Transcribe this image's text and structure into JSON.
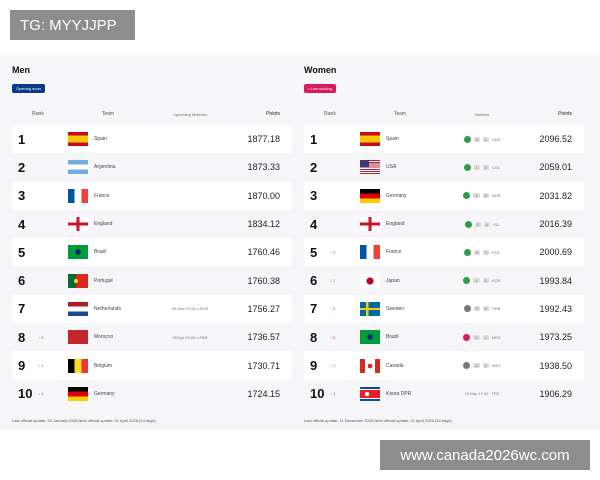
{
  "watermarks": {
    "top_left": "TG: MYYJJPP",
    "bottom_right": "www.canada2026wc.com"
  },
  "men": {
    "title": "Men",
    "badge": "Opening soon",
    "badge_color": "#0b3a8c",
    "headers": [
      "Rank",
      "Team",
      "Upcoming Matches",
      "Points"
    ],
    "rows": [
      {
        "rank": "1",
        "move": "",
        "team": "Spain",
        "flag": "es",
        "match": "",
        "points": "1877.18"
      },
      {
        "rank": "2",
        "move": "",
        "team": "Argentina",
        "flag": "ar",
        "match": "",
        "points": "1873.33"
      },
      {
        "rank": "3",
        "move": "",
        "team": "France",
        "flag": "fr",
        "match": "",
        "points": "1870.00"
      },
      {
        "rank": "4",
        "move": "",
        "team": "England",
        "flag": "en",
        "match": "",
        "points": "1834.12"
      },
      {
        "rank": "5",
        "move": "",
        "team": "Brazil",
        "flag": "br",
        "match": "",
        "points": "1760.46"
      },
      {
        "rank": "6",
        "move": "",
        "team": "Portugal",
        "flag": "pt",
        "match": "",
        "points": "1760.38"
      },
      {
        "rank": "7",
        "move": "",
        "team": "Netherlands",
        "flag": "nl",
        "match": "26 Mar 03:45 v NOR",
        "points": "1756.27"
      },
      {
        "rank": "8",
        "move": "↑ 3",
        "team": "Morocco",
        "flag": "ma",
        "match": "05 Apr 00:00 v PAR",
        "points": "1736.57"
      },
      {
        "rank": "9",
        "move": "↓ 1",
        "team": "Belgium",
        "flag": "be",
        "match": "",
        "points": "1730.71"
      },
      {
        "rank": "10",
        "move": "↓ 1",
        "team": "Germany",
        "flag": "de",
        "match": "",
        "points": "1724.15"
      }
    ],
    "footer": "Last official update: 20 January 2026     Next official update: 01 April 2026 (14 days)"
  },
  "women": {
    "title": "Women",
    "badge": "• Live ranking",
    "badge_color": "#d81b5a",
    "headers": [
      "Rank",
      "Team",
      "Matches",
      "Points"
    ],
    "rows": [
      {
        "rank": "1",
        "move": "",
        "team": "Spain",
        "flag": "es",
        "result": "win",
        "score": [
          "3",
          "1"
        ],
        "opp": "UKR",
        "points": "2096.52"
      },
      {
        "rank": "2",
        "move": "",
        "team": "USA",
        "flag": "us",
        "result": "win",
        "score": [
          "1",
          "0"
        ],
        "opp": "COL",
        "points": "2059.01"
      },
      {
        "rank": "3",
        "move": "",
        "team": "Germany",
        "flag": "de",
        "result": "win",
        "score": [
          "4",
          "0"
        ],
        "opp": "NOR",
        "points": "2031.82"
      },
      {
        "rank": "4",
        "move": "",
        "team": "England",
        "flag": "en",
        "result": "win",
        "score": [
          "2",
          "0"
        ],
        "opp": "ISL",
        "points": "2016.39"
      },
      {
        "rank": "5",
        "move": "↑ 2",
        "team": "France",
        "flag": "fr",
        "result": "win",
        "score": [
          "4",
          "1"
        ],
        "opp": "POL",
        "points": "2000.69"
      },
      {
        "rank": "6",
        "move": "↑ 2",
        "team": "Japan",
        "flag": "jp",
        "result": "win",
        "score": [
          "4",
          "1"
        ],
        "opp": "KOR",
        "points": "1993.84"
      },
      {
        "rank": "7",
        "move": "↓ 2",
        "team": "Sweden",
        "flag": "se",
        "result": "draw",
        "score": [
          "0",
          "0"
        ],
        "opp": "SRB",
        "points": "1992.43"
      },
      {
        "rank": "8",
        "move": "↓ 2",
        "team": "Brazil",
        "flag": "br",
        "result": "loss",
        "score": [
          "0",
          "1"
        ],
        "opp": "MEX",
        "points": "1973.25"
      },
      {
        "rank": "9",
        "move": "↑ 1",
        "team": "Canada",
        "flag": "ca",
        "result": "draw",
        "score": [
          "0",
          "0"
        ],
        "opp": "ARG",
        "points": "1938.50"
      },
      {
        "rank": "10",
        "move": "↓ 1",
        "team": "Korea DPR",
        "flag": "kp",
        "result": "upcoming",
        "date": "19 Mar 17:00",
        "opp": "TPE",
        "points": "1906.29"
      }
    ],
    "footer": "Last official update: 11 December 2025     Next official update: 21 April 2026 (34 days)"
  }
}
